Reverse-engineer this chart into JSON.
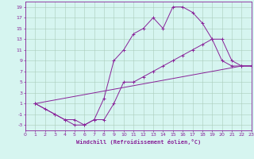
{
  "xlabel": "Windchill (Refroidissement éolien,°C)",
  "background_color": "#d6f5f0",
  "line_color": "#882299",
  "xlim": [
    0,
    23
  ],
  "ylim": [
    -4,
    20
  ],
  "xticks": [
    0,
    1,
    2,
    3,
    4,
    5,
    6,
    7,
    8,
    9,
    10,
    11,
    12,
    13,
    14,
    15,
    16,
    17,
    18,
    19,
    20,
    21,
    22,
    23
  ],
  "yticks": [
    -3,
    -1,
    1,
    3,
    5,
    7,
    9,
    11,
    13,
    15,
    17,
    19
  ],
  "line1_x": [
    1,
    2,
    3,
    4,
    5,
    6,
    7,
    8,
    9,
    10,
    11,
    12,
    13,
    14,
    15,
    16,
    17,
    18,
    19,
    20,
    21,
    22,
    23
  ],
  "line1_y": [
    1,
    0,
    -1,
    -2,
    -3,
    -3,
    -2,
    2,
    9,
    11,
    14,
    15,
    17,
    15,
    19,
    19,
    18,
    16,
    13,
    9,
    8,
    8,
    8
  ],
  "line2_x": [
    1,
    3,
    4,
    5,
    6,
    7,
    8,
    9,
    10,
    11,
    12,
    13,
    14,
    15,
    16,
    17,
    18,
    19,
    20,
    21,
    22,
    23
  ],
  "line2_y": [
    1,
    -1,
    -2,
    -2,
    -3,
    -2,
    -2,
    1,
    5,
    5,
    6,
    7,
    8,
    9,
    10,
    11,
    12,
    13,
    13,
    9,
    8,
    8
  ],
  "line3_x": [
    1,
    22,
    23
  ],
  "line3_y": [
    1,
    8,
    8
  ]
}
